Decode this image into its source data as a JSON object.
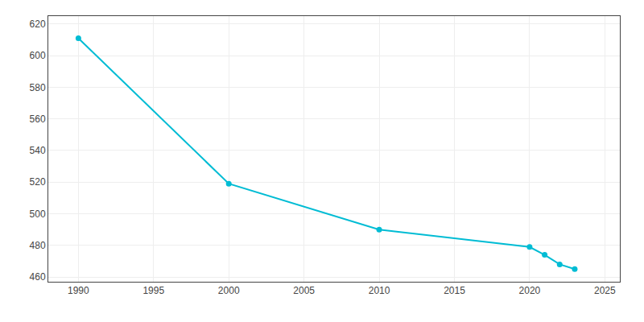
{
  "chart_data": {
    "type": "line",
    "x": [
      1990,
      2000,
      2010,
      2020,
      2021,
      2022,
      2023
    ],
    "values": [
      611,
      519,
      490,
      479,
      474,
      468,
      465
    ],
    "color": "#00bcd4",
    "marker": "circle",
    "xlim": [
      1988,
      2026
    ],
    "ylim": [
      457,
      625
    ],
    "xticks": [
      1990,
      1995,
      2000,
      2005,
      2010,
      2015,
      2020,
      2025
    ],
    "yticks": [
      460,
      480,
      500,
      520,
      540,
      560,
      580,
      600,
      620
    ],
    "grid": true
  }
}
